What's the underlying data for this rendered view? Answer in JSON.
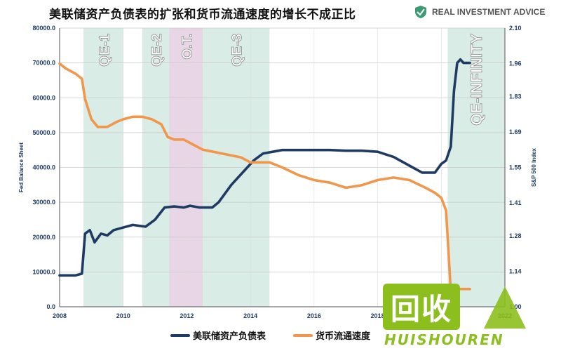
{
  "title": "美联储资产负债表的扩张和货币流通速度的增长不成正比",
  "brand": {
    "name": "REAL INVESTMENT ADVICE",
    "icon": "shield-icon"
  },
  "watermark": {
    "text": "回收",
    "subtext": "HUISHOUREN"
  },
  "chart_data": {
    "type": "line",
    "title": "美联储资产负债表的扩张和货币流通速度的增长不成正比",
    "xlabel": "",
    "ylabel": "Fed Balance Sheet",
    "y2label": "S&P 500 Index",
    "xlim": [
      2008,
      2022
    ],
    "ylim": [
      0,
      80000
    ],
    "y2lim": [
      1.0,
      2.1
    ],
    "x_ticks": [
      "2008",
      "2010",
      "2012",
      "2014",
      "2016",
      "2018",
      "2020",
      "2022"
    ],
    "y_ticks": [
      "0.0",
      "10000.0",
      "20000.0",
      "30000.0",
      "40000.0",
      "50000.0",
      "60000.0",
      "70000.0",
      "80000.0"
    ],
    "y2_ticks": [
      "1.00",
      "1.14",
      "1.28",
      "1.41",
      "1.55",
      "1.69",
      "1.83",
      "1.96",
      "2.10"
    ],
    "shaded_periods": [
      {
        "label": "QE-1",
        "start": 2008.75,
        "end": 2010.0,
        "color": "#d9ece6"
      },
      {
        "label": "QE-2",
        "start": 2010.6,
        "end": 2011.45,
        "color": "#d9ece6"
      },
      {
        "label": "O.T.",
        "start": 2011.45,
        "end": 2012.5,
        "color": "#e8d6e6"
      },
      {
        "label": "QE-3",
        "start": 2012.5,
        "end": 2014.6,
        "color": "#d9ece6"
      },
      {
        "label": "QE-INFINITY",
        "start": 2020.2,
        "end": 2022.0,
        "color": "#d9ece6"
      }
    ],
    "series": [
      {
        "name": "美联储资产负债表",
        "color": "#1f3b63",
        "axis": "left",
        "x": [
          2008.0,
          2008.5,
          2008.7,
          2008.8,
          2008.95,
          2009.1,
          2009.3,
          2009.5,
          2009.7,
          2009.9,
          2010.3,
          2010.7,
          2011.0,
          2011.3,
          2011.6,
          2011.9,
          2012.1,
          2012.4,
          2012.8,
          2013.0,
          2013.4,
          2013.8,
          2014.1,
          2014.4,
          2014.7,
          2015.0,
          2015.5,
          2016.0,
          2016.5,
          2017.0,
          2017.5,
          2018.0,
          2018.5,
          2019.0,
          2019.4,
          2019.8,
          2020.0,
          2020.15,
          2020.3,
          2020.4,
          2020.5,
          2020.6,
          2020.7,
          2020.9
        ],
        "values": [
          9000,
          9000,
          9500,
          21000,
          22000,
          18500,
          21000,
          20500,
          22000,
          22500,
          23500,
          23000,
          25000,
          28500,
          28800,
          28500,
          29000,
          28500,
          28500,
          30000,
          35000,
          39000,
          42000,
          44000,
          44500,
          45000,
          45000,
          45000,
          45000,
          44800,
          44800,
          44500,
          43000,
          40500,
          38500,
          38500,
          41000,
          42000,
          46000,
          62000,
          70000,
          71000,
          70000,
          70000
        ]
      },
      {
        "name": "货币流通速度",
        "color": "#f0974c",
        "axis": "right",
        "x": [
          2008.0,
          2008.2,
          2008.5,
          2008.7,
          2008.8,
          2009.0,
          2009.2,
          2009.5,
          2009.8,
          2010.0,
          2010.3,
          2010.6,
          2010.9,
          2011.2,
          2011.4,
          2011.6,
          2011.9,
          2012.2,
          2012.5,
          2012.9,
          2013.3,
          2013.7,
          2014.0,
          2014.3,
          2014.6,
          2015.0,
          2015.5,
          2016.0,
          2016.5,
          2017.0,
          2017.5,
          2018.0,
          2018.5,
          2019.0,
          2019.5,
          2019.8,
          2020.0,
          2020.15,
          2020.3,
          2020.45,
          2020.6,
          2020.9
        ],
        "values": [
          1.96,
          1.94,
          1.92,
          1.9,
          1.82,
          1.74,
          1.71,
          1.71,
          1.73,
          1.74,
          1.75,
          1.75,
          1.74,
          1.72,
          1.67,
          1.66,
          1.66,
          1.64,
          1.62,
          1.61,
          1.6,
          1.59,
          1.57,
          1.57,
          1.57,
          1.55,
          1.52,
          1.5,
          1.49,
          1.47,
          1.48,
          1.5,
          1.51,
          1.5,
          1.47,
          1.45,
          1.43,
          1.38,
          1.06,
          1.07,
          1.07,
          1.07
        ]
      }
    ],
    "legend_position": "bottom",
    "grid": true
  }
}
